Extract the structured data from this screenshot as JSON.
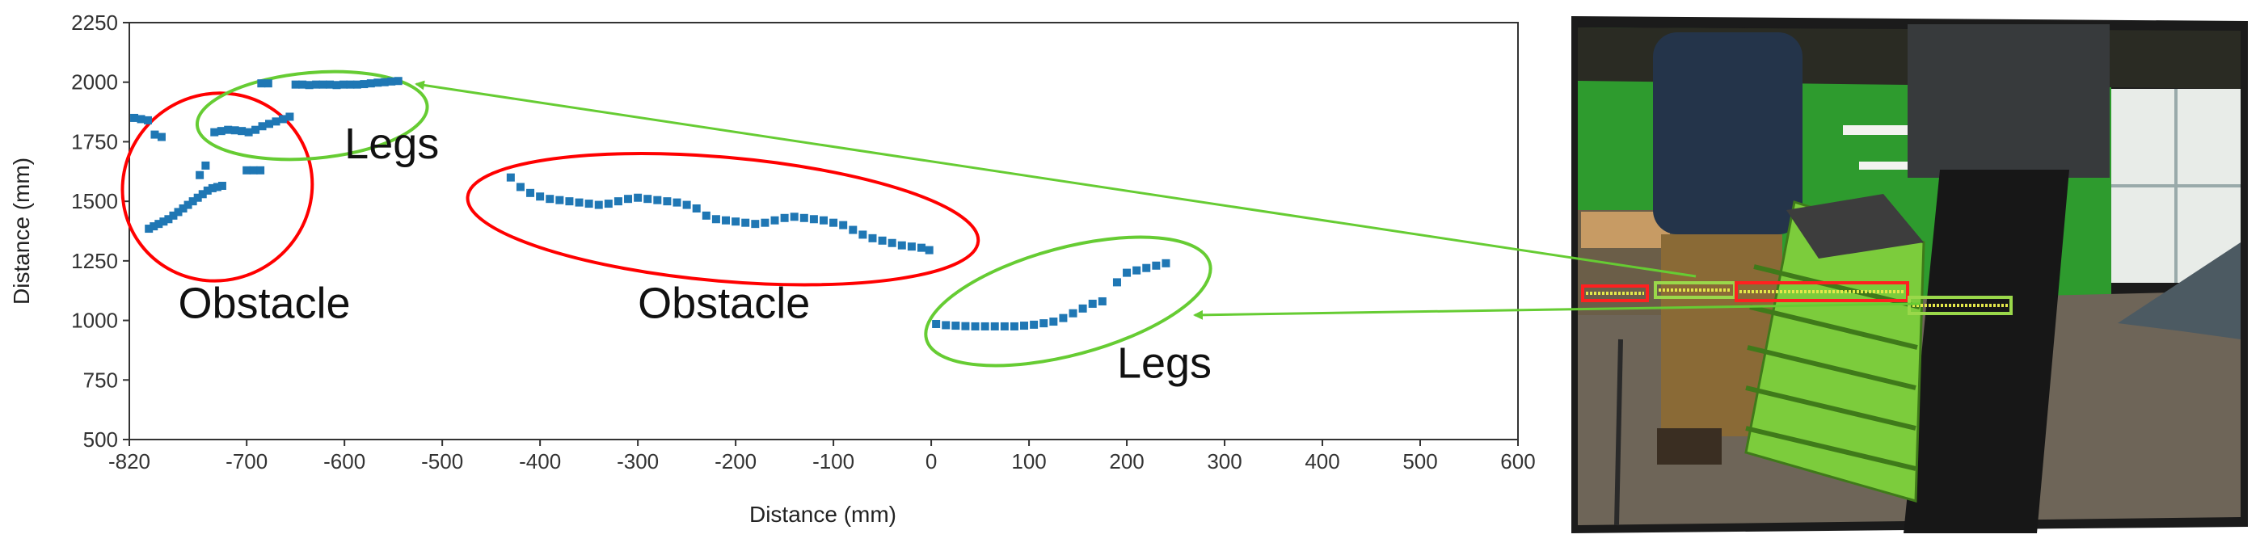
{
  "chart_data": {
    "type": "scatter",
    "xlabel": "Distance (mm)",
    "ylabel": "Distance (mm)",
    "xlim": [
      -820,
      600
    ],
    "ylim": [
      500,
      2250
    ],
    "xticks": [
      -820,
      -700,
      -600,
      -500,
      -400,
      -300,
      -200,
      -100,
      0,
      100,
      200,
      300,
      400,
      500,
      600
    ],
    "yticks": [
      500,
      750,
      1000,
      1250,
      1500,
      1750,
      2000,
      2250
    ],
    "grid": false,
    "series_color": "#1f77b4",
    "series": [
      {
        "points": [
          [
            -815,
            1850
          ],
          [
            -808,
            1845
          ],
          [
            -801,
            1840
          ],
          [
            -794,
            1780
          ],
          [
            -787,
            1770
          ],
          [
            -800,
            1385
          ],
          [
            -795,
            1395
          ],
          [
            -790,
            1405
          ],
          [
            -785,
            1415
          ],
          [
            -780,
            1425
          ],
          [
            -775,
            1440
          ],
          [
            -770,
            1455
          ],
          [
            -765,
            1470
          ],
          [
            -760,
            1485
          ],
          [
            -755,
            1500
          ],
          [
            -750,
            1515
          ],
          [
            -745,
            1530
          ],
          [
            -740,
            1545
          ],
          [
            -735,
            1555
          ],
          [
            -730,
            1560
          ],
          [
            -725,
            1565
          ],
          [
            -748,
            1610
          ],
          [
            -742,
            1650
          ],
          [
            -733,
            1790
          ],
          [
            -726,
            1795
          ],
          [
            -719,
            1800
          ],
          [
            -712,
            1798
          ],
          [
            -705,
            1795
          ],
          [
            -698,
            1790
          ],
          [
            -691,
            1800
          ],
          [
            -684,
            1815
          ],
          [
            -677,
            1825
          ],
          [
            -670,
            1835
          ],
          [
            -663,
            1845
          ],
          [
            -656,
            1855
          ],
          [
            -700,
            1630
          ],
          [
            -693,
            1630
          ],
          [
            -686,
            1630
          ],
          [
            -685,
            1995
          ],
          [
            -678,
            1995
          ],
          [
            -650,
            1990
          ],
          [
            -643,
            1990
          ],
          [
            -636,
            1988
          ],
          [
            -629,
            1990
          ],
          [
            -622,
            1990
          ],
          [
            -615,
            1990
          ],
          [
            -608,
            1988
          ],
          [
            -601,
            1990
          ],
          [
            -594,
            1990
          ],
          [
            -587,
            1990
          ],
          [
            -580,
            1992
          ],
          [
            -573,
            1995
          ],
          [
            -566,
            1998
          ],
          [
            -559,
            2000
          ],
          [
            -552,
            2003
          ],
          [
            -545,
            2005
          ],
          [
            -430,
            1600
          ],
          [
            -420,
            1560
          ],
          [
            -410,
            1535
          ],
          [
            -400,
            1520
          ],
          [
            -390,
            1510
          ],
          [
            -380,
            1505
          ],
          [
            -370,
            1500
          ],
          [
            -360,
            1495
          ],
          [
            -350,
            1490
          ],
          [
            -340,
            1485
          ],
          [
            -330,
            1490
          ],
          [
            -320,
            1500
          ],
          [
            -310,
            1510
          ],
          [
            -300,
            1515
          ],
          [
            -290,
            1510
          ],
          [
            -280,
            1505
          ],
          [
            -270,
            1500
          ],
          [
            -260,
            1495
          ],
          [
            -250,
            1485
          ],
          [
            -240,
            1470
          ],
          [
            -230,
            1440
          ],
          [
            -220,
            1425
          ],
          [
            -210,
            1420
          ],
          [
            -200,
            1415
          ],
          [
            -190,
            1410
          ],
          [
            -180,
            1405
          ],
          [
            -170,
            1410
          ],
          [
            -160,
            1420
          ],
          [
            -150,
            1430
          ],
          [
            -140,
            1435
          ],
          [
            -130,
            1430
          ],
          [
            -120,
            1425
          ],
          [
            -110,
            1420
          ],
          [
            -100,
            1410
          ],
          [
            -90,
            1400
          ],
          [
            -80,
            1380
          ],
          [
            -70,
            1360
          ],
          [
            -60,
            1345
          ],
          [
            -50,
            1335
          ],
          [
            -40,
            1325
          ],
          [
            -30,
            1315
          ],
          [
            -20,
            1310
          ],
          [
            -10,
            1305
          ],
          [
            -2,
            1295
          ],
          [
            5,
            985
          ],
          [
            15,
            980
          ],
          [
            25,
            978
          ],
          [
            35,
            976
          ],
          [
            45,
            975
          ],
          [
            55,
            975
          ],
          [
            65,
            975
          ],
          [
            75,
            975
          ],
          [
            85,
            975
          ],
          [
            95,
            978
          ],
          [
            105,
            982
          ],
          [
            115,
            988
          ],
          [
            125,
            995
          ],
          [
            135,
            1010
          ],
          [
            145,
            1030
          ],
          [
            155,
            1050
          ],
          [
            165,
            1070
          ],
          [
            175,
            1080
          ],
          [
            190,
            1160
          ],
          [
            200,
            1200
          ],
          [
            210,
            1210
          ],
          [
            220,
            1220
          ],
          [
            230,
            1230
          ],
          [
            240,
            1240
          ]
        ]
      }
    ],
    "annotations": {
      "ellipses": [
        {
          "label": "Obstacle",
          "color": "#ff0000",
          "center": [
            -730,
            1560
          ],
          "rx_mm": 98,
          "ry_mm": 390,
          "angle": -35
        },
        {
          "label": "Legs",
          "color": "#66cc33",
          "center": [
            -633,
            1860
          ],
          "rx_mm": 118,
          "ry_mm": 180,
          "angle": -5
        },
        {
          "label": "Obstacle",
          "color": "#ff0000",
          "center": [
            -213,
            1425
          ],
          "rx_mm": 262,
          "ry_mm": 260,
          "angle": 5
        },
        {
          "label": "Legs",
          "color": "#66cc33",
          "center": [
            140,
            1080
          ],
          "rx_mm": 150,
          "ry_mm": 225,
          "angle": -15
        }
      ],
      "labels": [
        {
          "text": "Obstacle",
          "x": -770,
          "y": 1010
        },
        {
          "text": "Legs",
          "x": -600,
          "y": 1680
        },
        {
          "text": "Obstacle",
          "x": -300,
          "y": 1010
        },
        {
          "text": "Legs",
          "x": 190,
          "y": 760
        }
      ]
    }
  },
  "photo": {
    "box_colors": [
      "#ff2020",
      "#9ad84a",
      "#ff2020",
      "#9ad84a"
    ],
    "arrow_color": "#66cc33"
  }
}
